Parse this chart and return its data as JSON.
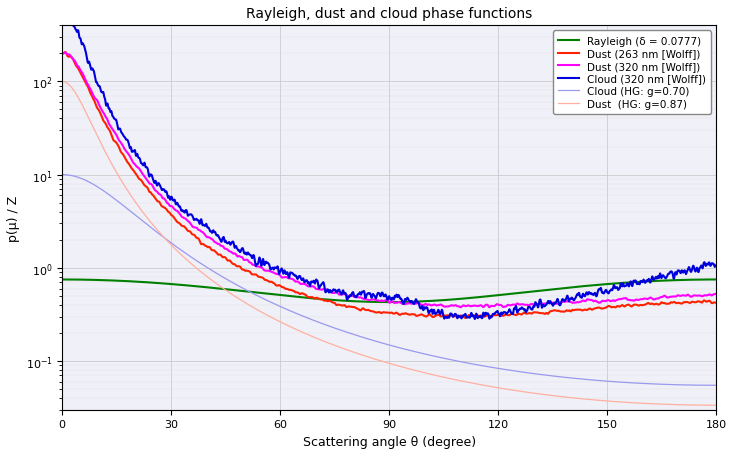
{
  "title": "Rayleigh, dust and cloud phase functions",
  "xlabel": "Scattering angle θ (degree)",
  "ylabel": "p(μ) / Z",
  "xlim": [
    0,
    180
  ],
  "ylim": [
    0.03,
    400
  ],
  "legend_entries": [
    "Rayleigh (δ = 0.0777)",
    "Dust (263 nm [Wolff])",
    "Dust (320 nm [Wolff])",
    "Cloud (320 nm [Wolff])",
    "Cloud (HG: g=0.70)",
    "Dust  (HG: g=0.87)"
  ],
  "colors": {
    "rayleigh": "#008000",
    "dust263": "#ff2200",
    "dust320": "#ff00ff",
    "cloud320": "#0000dd",
    "cloud_hg": "#9999ee",
    "dust_hg": "#ffb0a0"
  },
  "rayleigh_delta": 0.0777,
  "hg_cloud_g": 0.7,
  "hg_dust_g": 0.87,
  "bg_color": "#f0f0f8"
}
